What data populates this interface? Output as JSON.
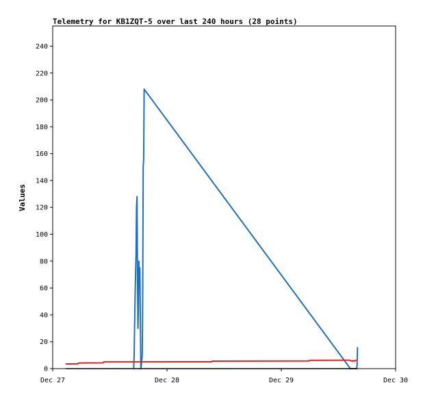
{
  "chart_data": {
    "type": "line",
    "title": "Telemetry for KB1ZQT-5 over last 240 hours (28 points)",
    "xlabel": "",
    "ylabel": "Values",
    "x_unit": "hours since Dec 27 00:00",
    "xlim": [
      0,
      72
    ],
    "ylim": [
      0,
      255
    ],
    "x_ticks": [
      {
        "value": 0,
        "label": "Dec 27"
      },
      {
        "value": 24,
        "label": "Dec 28"
      },
      {
        "value": 48,
        "label": "Dec 29"
      },
      {
        "value": 72,
        "label": "Dec 30"
      }
    ],
    "y_ticks": [
      0,
      20,
      40,
      60,
      80,
      100,
      120,
      140,
      160,
      180,
      200,
      220,
      240
    ],
    "grid": false,
    "legend": "none",
    "colors": {
      "blue": "#1f6fbf",
      "red": "#e8201b",
      "black": "#000000"
    },
    "series": [
      {
        "color": "blue",
        "points": [
          [
            17.0,
            0
          ],
          [
            17.1,
            10
          ],
          [
            17.3,
            55
          ],
          [
            17.5,
            85
          ],
          [
            17.6,
            120
          ],
          [
            17.7,
            128
          ],
          [
            17.8,
            70
          ],
          [
            17.9,
            30
          ],
          [
            18.0,
            45
          ],
          [
            18.1,
            80
          ],
          [
            18.2,
            60
          ],
          [
            18.3,
            75
          ],
          [
            18.4,
            40
          ],
          [
            18.5,
            0
          ],
          [
            18.6,
            2
          ],
          [
            18.8,
            10
          ],
          [
            18.9,
            55
          ],
          [
            19.0,
            150
          ],
          [
            19.1,
            156
          ],
          [
            19.2,
            208
          ],
          [
            62.5,
            0
          ],
          [
            63.8,
            0
          ],
          [
            63.9,
            2
          ],
          [
            64.0,
            16
          ]
        ]
      },
      {
        "color": "red",
        "points": [
          [
            2.7,
            3.5
          ],
          [
            5.3,
            3.6
          ],
          [
            5.4,
            4.2
          ],
          [
            10.6,
            4.3
          ],
          [
            10.7,
            5.0
          ],
          [
            33.4,
            5.1
          ],
          [
            33.5,
            5.6
          ],
          [
            53.8,
            5.7
          ],
          [
            53.9,
            6.2
          ],
          [
            62.3,
            6.3
          ],
          [
            62.5,
            6.0
          ],
          [
            62.9,
            5.5
          ],
          [
            63.1,
            6.0
          ],
          [
            63.4,
            5.6
          ],
          [
            63.6,
            6.2
          ],
          [
            64.0,
            6.4
          ]
        ]
      },
      {
        "color": "black",
        "points": [
          [
            2.7,
            0
          ],
          [
            64.0,
            0
          ]
        ]
      }
    ]
  }
}
